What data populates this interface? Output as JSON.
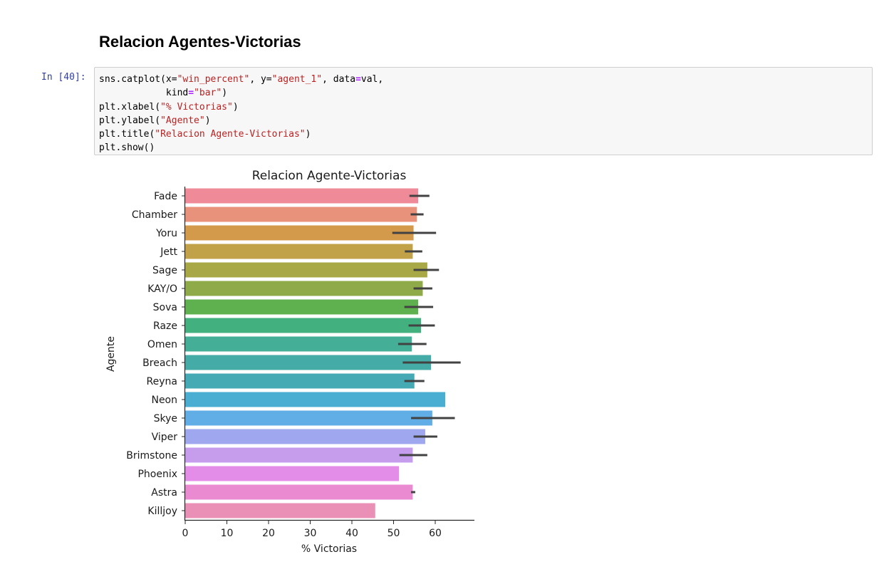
{
  "notebook": {
    "heading": "Relacion Agentes-Victorias",
    "cell_prompt": "In [40]:",
    "code_lines": [
      [
        {
          "t": "sns.catplot(x=",
          "c": ""
        },
        {
          "t": "\"win_percent\"",
          "c": "s"
        },
        {
          "t": ", y=",
          "c": ""
        },
        {
          "t": "\"agent_1\"",
          "c": "s"
        },
        {
          "t": ", data",
          "c": ""
        },
        {
          "t": "=",
          "c": "op"
        },
        {
          "t": "val,",
          "c": ""
        }
      ],
      [
        {
          "t": "            kind",
          "c": ""
        },
        {
          "t": "=",
          "c": "op"
        },
        {
          "t": "\"bar\"",
          "c": "s"
        },
        {
          "t": ")",
          "c": ""
        }
      ],
      [
        {
          "t": "plt.xlabel(",
          "c": ""
        },
        {
          "t": "\"% Victorias\"",
          "c": "s"
        },
        {
          "t": ")",
          "c": ""
        }
      ],
      [
        {
          "t": "plt.ylabel(",
          "c": ""
        },
        {
          "t": "\"Agente\"",
          "c": "s"
        },
        {
          "t": ")",
          "c": ""
        }
      ],
      [
        {
          "t": "plt.title(",
          "c": ""
        },
        {
          "t": "\"Relacion Agente-Victorias\"",
          "c": "s"
        },
        {
          "t": ")",
          "c": ""
        }
      ],
      [
        {
          "t": "plt.show()",
          "c": ""
        }
      ]
    ]
  },
  "chart_data": {
    "type": "bar",
    "orientation": "horizontal",
    "title": "Relacion Agente-Victorias",
    "xlabel": "% Victorias",
    "ylabel": "Agente",
    "xlim": [
      0,
      70
    ],
    "xticks": [
      0,
      10,
      20,
      30,
      40,
      50,
      60
    ],
    "grid": false,
    "categories": [
      "Fade",
      "Chamber",
      "Yoru",
      "Jett",
      "Sage",
      "KAY/O",
      "Sova",
      "Raze",
      "Omen",
      "Breach",
      "Reyna",
      "Neon",
      "Skye",
      "Viper",
      "Brimstone",
      "Phoenix",
      "Astra",
      "Killjoy"
    ],
    "values": [
      55.9,
      55.6,
      54.8,
      54.6,
      58.1,
      57.0,
      55.9,
      56.6,
      54.4,
      59.0,
      55.0,
      62.4,
      59.3,
      57.6,
      54.6,
      51.3,
      54.6,
      45.6
    ],
    "error_low": [
      53.8,
      54.1,
      49.7,
      52.7,
      54.8,
      54.8,
      52.6,
      53.6,
      51.1,
      52.2,
      52.6,
      null,
      54.2,
      54.8,
      51.4,
      null,
      54.2,
      null
    ],
    "error_high": [
      58.6,
      57.2,
      60.2,
      56.9,
      60.9,
      59.3,
      59.5,
      59.9,
      57.9,
      66.1,
      57.4,
      null,
      64.7,
      60.5,
      58.1,
      null,
      55.2,
      null
    ],
    "colors": [
      "#ef8b98",
      "#e9927b",
      "#d49a4c",
      "#c2a248",
      "#a9a847",
      "#8faa48",
      "#5fb14f",
      "#43b07f",
      "#44ae97",
      "#45aba6",
      "#46aab5",
      "#4aadd2",
      "#61aee7",
      "#9fa8ee",
      "#c69ced",
      "#e38de9",
      "#ea8bd1",
      "#ea90b6"
    ],
    "error_color": "#424242"
  }
}
